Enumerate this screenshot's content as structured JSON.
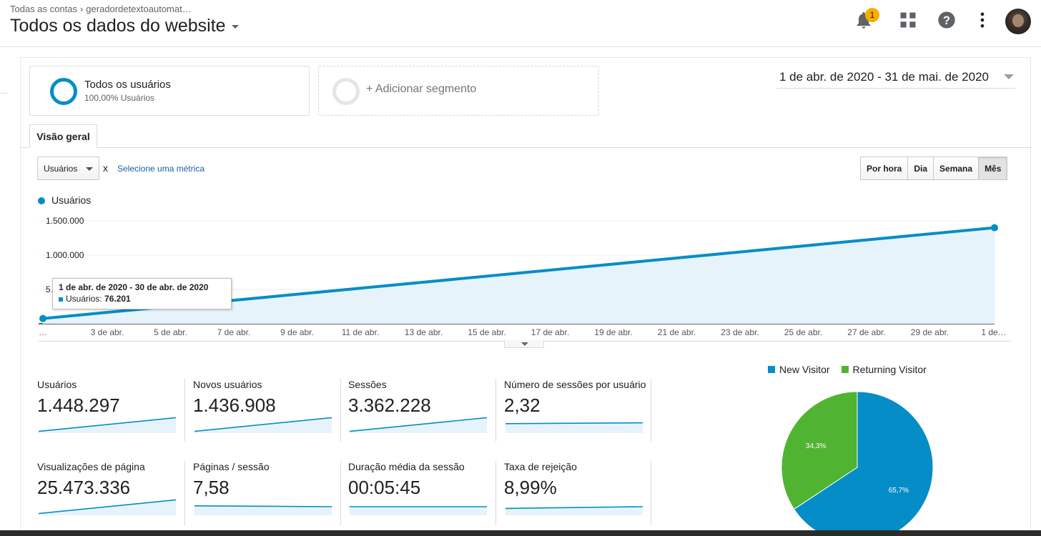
{
  "header": {
    "breadcrumb_root": "Todas as contas",
    "breadcrumb_property": "geradordetextoautomat…",
    "view_title": "Todos os dados do website",
    "notification_count": "1",
    "icons": [
      "bell-icon",
      "apps-grid-icon",
      "help-icon",
      "more-vert-icon",
      "avatar"
    ]
  },
  "segments": {
    "active_name": "Todos os usuários",
    "active_sub": "100,00% Usuários",
    "add_label": "+ Adicionar segmento"
  },
  "date_range": "1 de abr. de 2020 - 31 de mai. de 2020",
  "tabs": {
    "overview": "Visão geral"
  },
  "controls": {
    "metric_select": "Usuários",
    "x_mark": "x",
    "select_metric_link": "Selecione uma métrica",
    "periods": [
      "Por hora",
      "Dia",
      "Semana",
      "Mês"
    ],
    "active_period": "Mês"
  },
  "tooltip": {
    "title": "1 de abr. de 2020 - 30 de abr. de 2020",
    "label": "Usuários: ",
    "value": "76.201"
  },
  "chart_data": [
    {
      "type": "area",
      "legend": [
        "Usuários"
      ],
      "y_tick_labels": [
        "1.500.000",
        "1.000.000",
        "5…"
      ],
      "x_tick_labels": [
        "…",
        "3 de abr.",
        "5 de abr.",
        "7 de abr.",
        "9 de abr.",
        "11 de abr.",
        "13 de abr.",
        "15 de abr.",
        "17 de abr.",
        "19 de abr.",
        "21 de abr.",
        "23 de abr.",
        "25 de abr.",
        "27 de abr.",
        "29 de abr.",
        "1 de…"
      ],
      "series": [
        {
          "name": "Usuários",
          "x": [
            "abr. 2020",
            "mai. 2020"
          ],
          "values": [
            76201,
            1400000
          ]
        }
      ],
      "ylim": [
        0,
        1500000
      ],
      "grid": true,
      "color": "#058dc7"
    },
    {
      "type": "pie",
      "legend_position": "top",
      "slices": [
        {
          "name": "New Visitor",
          "value": 65.7,
          "label": "65,7%",
          "color": "#058dc7"
        },
        {
          "name": "Returning Visitor",
          "value": 34.3,
          "label": "34,3%",
          "color": "#50b432"
        }
      ]
    }
  ],
  "scorecards": [
    {
      "title": "Usuários",
      "value": "1.448.297",
      "trend": [
        0.1,
        0.9
      ]
    },
    {
      "title": "Novos usuários",
      "value": "1.436.908",
      "trend": [
        0.1,
        0.9
      ]
    },
    {
      "title": "Sessões",
      "value": "3.362.228",
      "trend": [
        0.1,
        0.9
      ]
    },
    {
      "title": "Número de sessões por usuário",
      "value": "2,32",
      "trend": [
        0.55,
        0.6
      ]
    },
    {
      "title": "Visualizações de página",
      "value": "25.473.336",
      "trend": [
        0.1,
        0.9
      ]
    },
    {
      "title": "Páginas / sessão",
      "value": "7,58",
      "trend": [
        0.55,
        0.5
      ]
    },
    {
      "title": "Duração média da sessão",
      "value": "00:05:45",
      "trend": [
        0.5,
        0.5
      ]
    },
    {
      "title": "Taxa de rejeição",
      "value": "8,99%",
      "trend": [
        0.4,
        0.5
      ]
    }
  ]
}
